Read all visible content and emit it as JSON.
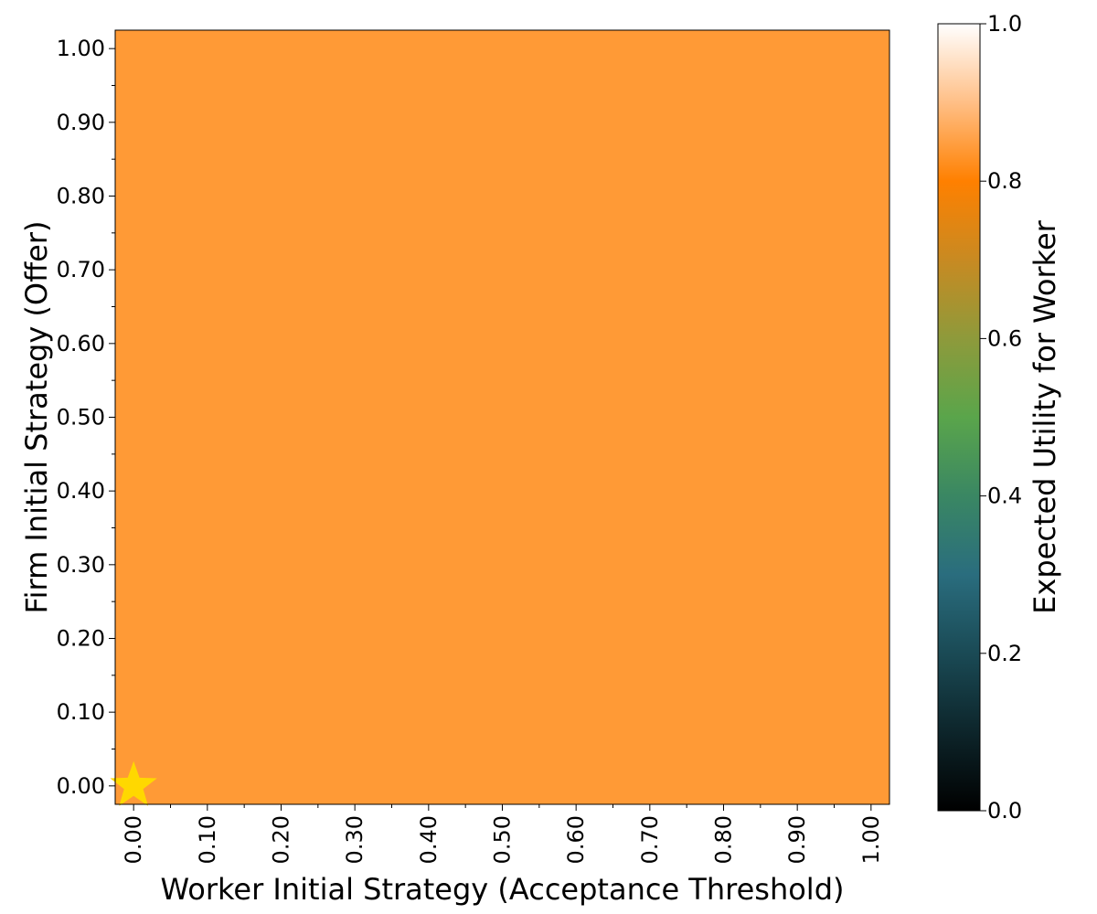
{
  "chart_data": {
    "type": "heatmap",
    "title": "",
    "xlabel": "Worker Initial Strategy (Acceptance Threshold)",
    "ylabel": "Firm Initial Strategy (Offer)",
    "x_ticks": [
      "0.00",
      "0.10",
      "0.20",
      "0.30",
      "0.40",
      "0.50",
      "0.60",
      "0.70",
      "0.80",
      "0.90",
      "1.00"
    ],
    "y_ticks": [
      "0.00",
      "0.10",
      "0.20",
      "0.30",
      "0.40",
      "0.50",
      "0.60",
      "0.70",
      "0.80",
      "0.90",
      "1.00"
    ],
    "xlim": [
      -0.025,
      1.025
    ],
    "ylim": [
      -0.025,
      1.025
    ],
    "cell_value": 0.8,
    "cell_color": "#ff9a36",
    "colorbar": {
      "label": "Expected Utility for Worker",
      "range": [
        0.0,
        1.0
      ],
      "ticks": [
        "0.0",
        "0.2",
        "0.4",
        "0.6",
        "0.8",
        "1.0"
      ],
      "stops": [
        {
          "value": 0.0,
          "color": "#000000"
        },
        {
          "value": 0.2,
          "color": "#1a4a55"
        },
        {
          "value": 0.3,
          "color": "#2a6d7e"
        },
        {
          "value": 0.4,
          "color": "#3a8763"
        },
        {
          "value": 0.5,
          "color": "#5aa54b"
        },
        {
          "value": 0.6,
          "color": "#8e9a3b"
        },
        {
          "value": 0.7,
          "color": "#c88a22"
        },
        {
          "value": 0.8,
          "color": "#ff8000"
        },
        {
          "value": 0.9,
          "color": "#ffbf86"
        },
        {
          "value": 1.0,
          "color": "#ffffff"
        }
      ]
    },
    "marker": {
      "shape": "star",
      "x": 0.0,
      "y": 0.0,
      "color": "#ffd800"
    }
  }
}
